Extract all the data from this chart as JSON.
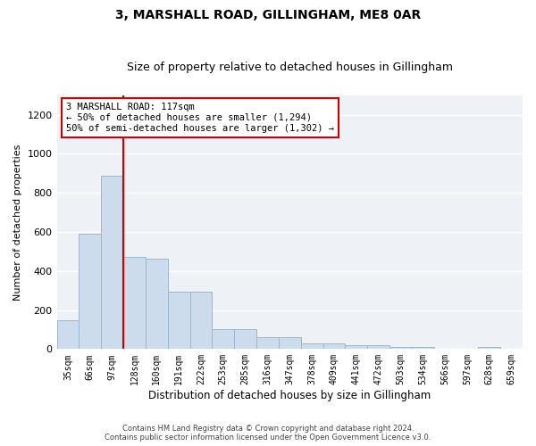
{
  "title": "3, MARSHALL ROAD, GILLINGHAM, ME8 0AR",
  "subtitle": "Size of property relative to detached houses in Gillingham",
  "xlabel": "Distribution of detached houses by size in Gillingham",
  "ylabel": "Number of detached properties",
  "bar_color": "#cddcec",
  "bar_edge_color": "#9ab8d0",
  "categories": [
    "35sqm",
    "66sqm",
    "97sqm",
    "128sqm",
    "160sqm",
    "191sqm",
    "222sqm",
    "253sqm",
    "285sqm",
    "316sqm",
    "347sqm",
    "378sqm",
    "409sqm",
    "441sqm",
    "472sqm",
    "503sqm",
    "534sqm",
    "566sqm",
    "597sqm",
    "628sqm",
    "659sqm"
  ],
  "values": [
    150,
    590,
    890,
    470,
    465,
    295,
    295,
    100,
    100,
    62,
    62,
    28,
    28,
    18,
    18,
    10,
    10,
    3,
    3,
    10,
    3
  ],
  "ylim": [
    0,
    1300
  ],
  "yticks": [
    0,
    200,
    400,
    600,
    800,
    1000,
    1200
  ],
  "vline_x": 2.5,
  "vline_color": "#cc0000",
  "annotation_text": "3 MARSHALL ROAD: 117sqm\n← 50% of detached houses are smaller (1,294)\n50% of semi-detached houses are larger (1,302) →",
  "footer_line1": "Contains HM Land Registry data © Crown copyright and database right 2024.",
  "footer_line2": "Contains public sector information licensed under the Open Government Licence v3.0.",
  "plot_bg_color": "#eef2f7",
  "fig_bg_color": "#ffffff"
}
